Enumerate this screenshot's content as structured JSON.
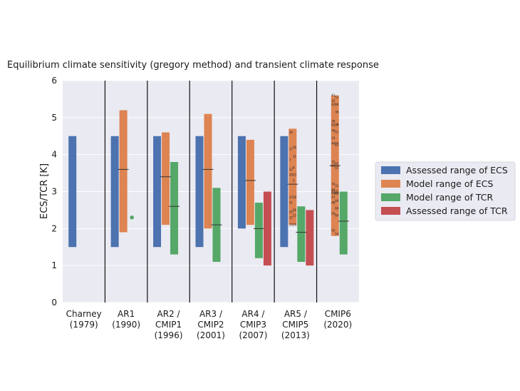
{
  "chart_data": {
    "type": "bar",
    "title": "Equilibrium climate sensitivity (gregory method) and transient climate response",
    "ylabel": "ECS/TCR [K]",
    "ylim": [
      0,
      6
    ],
    "yticks": [
      "0",
      "1",
      "2",
      "3",
      "4",
      "5",
      "6"
    ],
    "grid": true,
    "legend_position": "right",
    "categories": [
      [
        "Charney",
        "(1979)"
      ],
      [
        "AR1",
        "(1990)"
      ],
      [
        "AR2 /",
        "CMIP1",
        "(1996)"
      ],
      [
        "AR3 /",
        "CMIP2",
        "(2001)"
      ],
      [
        "AR4 /",
        "CMIP3",
        "(2007)"
      ],
      [
        "AR5 /",
        "CMIP5",
        "(2013)"
      ],
      [
        "CMIP6",
        "(2020)"
      ]
    ],
    "series": [
      {
        "name": "Assessed range of ECS",
        "color": "#4c72b0",
        "ranges": [
          [
            1.5,
            4.5
          ],
          [
            1.5,
            4.5
          ],
          [
            1.5,
            4.5
          ],
          [
            1.5,
            4.5
          ],
          [
            2.0,
            4.5
          ],
          [
            1.5,
            4.5
          ],
          null
        ],
        "medians": [
          null,
          null,
          null,
          null,
          null,
          null,
          null
        ]
      },
      {
        "name": "Model range of ECS",
        "color": "#dd8452",
        "ranges": [
          null,
          [
            1.9,
            5.2
          ],
          [
            2.1,
            4.6
          ],
          [
            2.0,
            5.1
          ],
          [
            2.1,
            4.4
          ],
          [
            2.1,
            4.7
          ],
          [
            1.8,
            5.6
          ]
        ],
        "medians": [
          null,
          3.6,
          3.4,
          3.6,
          3.3,
          3.2,
          3.7
        ]
      },
      {
        "name": "Model range of TCR",
        "color": "#55a868",
        "ranges": [
          null,
          null,
          [
            1.3,
            3.8
          ],
          [
            1.1,
            3.1
          ],
          [
            1.2,
            2.7
          ],
          [
            1.1,
            2.6
          ],
          [
            1.3,
            3.0
          ]
        ],
        "medians": [
          null,
          null,
          2.6,
          2.1,
          2.0,
          1.9,
          2.2
        ]
      },
      {
        "name": "Assessed range of TCR",
        "color": "#c44e52",
        "ranges": [
          null,
          null,
          null,
          null,
          [
            1.0,
            3.0
          ],
          [
            1.0,
            2.5
          ],
          null
        ]
      }
    ],
    "points": [
      {
        "category_index": 1,
        "series": "Model range of TCR",
        "y": 2.3
      }
    ],
    "model_labels": [
      {
        "category_index": 5,
        "series": "Model range of ECS",
        "labels": [
          [
            "30",
            4.6
          ],
          [
            "18",
            4.2
          ],
          [
            "17",
            4.15
          ],
          [
            "11",
            3.95
          ],
          [
            "7",
            3.85
          ],
          [
            "6",
            3.65
          ],
          [
            "22",
            3.6
          ],
          [
            "23",
            3.45
          ],
          [
            "24",
            3.45
          ],
          [
            "5",
            3.3
          ],
          [
            "27",
            2.85
          ],
          [
            "28",
            2.85
          ],
          [
            "31",
            2.7
          ],
          [
            "26",
            2.5
          ],
          [
            "25",
            2.45
          ],
          [
            "13",
            2.35
          ],
          [
            "12",
            2.3
          ],
          [
            "29",
            2.1
          ],
          [
            "15",
            2.1
          ]
        ]
      },
      {
        "category_index": 6,
        "series": "Model range of ECS",
        "labels": [
          [
            "41",
            5.6
          ],
          [
            "51",
            5.55
          ],
          [
            "25",
            5.45
          ],
          [
            "68",
            5.35
          ],
          [
            "42",
            5.35
          ],
          [
            "36",
            5.15
          ],
          [
            "38",
            4.9
          ],
          [
            "37",
            4.8
          ],
          [
            "62",
            4.8
          ],
          [
            "39",
            4.8
          ],
          [
            "56",
            4.65
          ],
          [
            "57",
            4.6
          ],
          [
            "53",
            4.45
          ],
          [
            "44",
            4.3
          ],
          [
            "46",
            4.3
          ],
          [
            "43",
            4.25
          ],
          [
            "35",
            3.8
          ],
          [
            "65",
            3.75
          ],
          [
            "61",
            3.7
          ],
          [
            "52",
            3.65
          ],
          [
            "34",
            3.2
          ],
          [
            "31",
            3.15
          ],
          [
            "63",
            3.05
          ],
          [
            "32",
            3.0
          ],
          [
            "43",
            3.0
          ],
          [
            "45",
            2.95
          ],
          [
            "64",
            2.95
          ],
          [
            "61",
            2.95
          ],
          [
            "47",
            2.85
          ],
          [
            "49",
            2.75
          ],
          [
            "48",
            2.7
          ],
          [
            "66",
            2.55
          ],
          [
            "59",
            2.4
          ],
          [
            "69",
            2.35
          ],
          [
            "55",
            1.95
          ],
          [
            "54",
            1.85
          ]
        ]
      }
    ]
  }
}
